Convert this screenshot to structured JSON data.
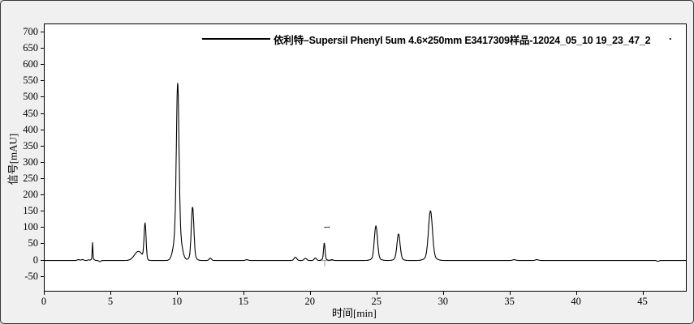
{
  "window": {
    "background_color": "#f0f0f0",
    "plot_background_color": "#ffffff",
    "border_color": "#3a3a3a"
  },
  "legend": {
    "series_label": "依利特–Supersil Phenyl 5um 4.6×250mm E3417309样品-12024_05_10 19_23_47_2",
    "trailing_dot": "."
  },
  "chart_data": {
    "type": "line",
    "title": "",
    "xlabel": "时间[min]",
    "ylabel": "信号[mAU]",
    "xlim": [
      0,
      48.2
    ],
    "ylim": [
      -93,
      725
    ],
    "x_ticks": [
      0,
      5,
      10,
      15,
      20,
      25,
      30,
      35,
      40,
      45
    ],
    "y_ticks": [
      -50,
      0,
      50,
      100,
      150,
      200,
      250,
      300,
      350,
      400,
      450,
      500,
      550,
      600,
      650,
      700
    ],
    "grid": false,
    "legend_position": "top-center",
    "line_color": "#000000",
    "baseline_mau": 0,
    "peaks_summary": [
      {
        "rt_min": 3.6,
        "height_mau": 56,
        "note": "sharp narrow spike"
      },
      {
        "rt_min": 7.5,
        "height_mau": 115,
        "note": "peak with leading shoulder from ~6.5 min"
      },
      {
        "rt_min": 10.0,
        "height_mau": 545,
        "note": "main/tallest peak"
      },
      {
        "rt_min": 11.1,
        "height_mau": 163
      },
      {
        "rt_min": 12.5,
        "height_mau": 7
      },
      {
        "rt_min": 15.2,
        "height_mau": 3
      },
      {
        "rt_min": 18.9,
        "height_mau": 10
      },
      {
        "rt_min": 19.6,
        "height_mau": 7
      },
      {
        "rt_min": 20.4,
        "height_mau": 8
      },
      {
        "rt_min": 21.0,
        "height_mau": 54,
        "label": "1"
      },
      {
        "rt_min": 24.9,
        "height_mau": 106
      },
      {
        "rt_min": 26.6,
        "height_mau": 81
      },
      {
        "rt_min": 29.0,
        "height_mau": 152
      },
      {
        "rt_min": 35.3,
        "height_mau": 3
      },
      {
        "rt_min": 37.0,
        "height_mau": 3
      },
      {
        "rt_min": 46.1,
        "height_mau": -3,
        "note": "tiny negative dip"
      }
    ],
    "peak_annotations": [
      {
        "label": "1",
        "t": 21.02,
        "label_signal": 100
      }
    ],
    "integration_marks": {
      "color": "#9a9a9a",
      "baseline_segment": {
        "t1": 20.65,
        "t2": 21.75,
        "signal": 0
      },
      "drop_tick": {
        "t": 21.05,
        "signal_top": 2,
        "signal_bottom": -18
      }
    },
    "curve_components": [
      {
        "t": 2.55,
        "h": 2.5,
        "s": 0.1
      },
      {
        "t": 2.85,
        "h": 3.0,
        "s": 0.08
      },
      {
        "t": 3.3,
        "h": 2.0,
        "s": 0.06
      },
      {
        "t": 3.6,
        "h": 50.0,
        "s": 0.025
      },
      {
        "t": 3.6,
        "h": 6.0,
        "s": 0.1
      },
      {
        "t": 4.15,
        "h": -3.5,
        "s": 0.07
      },
      {
        "t": 7.05,
        "h": 28.0,
        "s": 0.3
      },
      {
        "t": 7.55,
        "h": 108.0,
        "s": 0.075
      },
      {
        "t": 10.0,
        "h": 430.0,
        "s": 0.095
      },
      {
        "t": 10.0,
        "h": 115.0,
        "s": 0.24
      },
      {
        "t": 11.12,
        "h": 150.0,
        "s": 0.095
      },
      {
        "t": 11.12,
        "h": 14.0,
        "s": 0.22
      },
      {
        "t": 12.45,
        "h": 7.0,
        "s": 0.09
      },
      {
        "t": 15.2,
        "h": 2.5,
        "s": 0.1
      },
      {
        "t": 18.85,
        "h": 10.0,
        "s": 0.1
      },
      {
        "t": 19.6,
        "h": 6.5,
        "s": 0.1
      },
      {
        "t": 20.35,
        "h": 7.5,
        "s": 0.09
      },
      {
        "t": 21.02,
        "h": 48.0,
        "s": 0.055
      },
      {
        "t": 21.02,
        "h": 6.0,
        "s": 0.15
      },
      {
        "t": 21.6,
        "h": 2.5,
        "s": 0.1
      },
      {
        "t": 24.9,
        "h": 98.0,
        "s": 0.115
      },
      {
        "t": 24.9,
        "h": 8.0,
        "s": 0.28
      },
      {
        "t": 26.6,
        "h": 73.0,
        "s": 0.115
      },
      {
        "t": 26.6,
        "h": 8.0,
        "s": 0.25
      },
      {
        "t": 29.0,
        "h": 138.0,
        "s": 0.145
      },
      {
        "t": 29.0,
        "h": 14.0,
        "s": 0.33
      },
      {
        "t": 35.3,
        "h": 2.5,
        "s": 0.12
      },
      {
        "t": 37.0,
        "h": 2.5,
        "s": 0.12
      },
      {
        "t": 46.1,
        "h": -2.5,
        "s": 0.08
      }
    ]
  }
}
